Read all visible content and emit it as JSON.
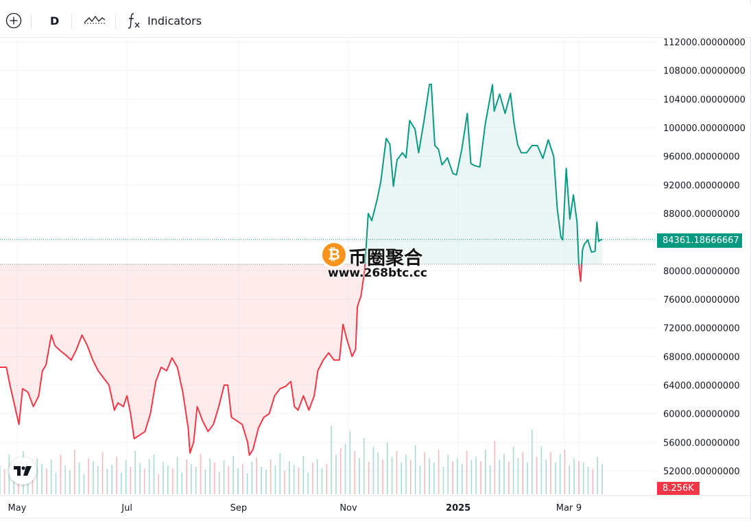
{
  "toolbar": {
    "interval": "D",
    "indicators_label": "Indicators",
    "icons": [
      "plus-circle-icon",
      "compare-symbol-icon",
      "function-icon"
    ]
  },
  "colors": {
    "up": "#089981",
    "down": "#f23645",
    "up_fill": "rgba(8,153,129,0.08)",
    "down_fill": "rgba(242,54,69,0.10)",
    "grid": "#f0f3fa",
    "text": "#131722"
  },
  "price_tag": "84361.18666667",
  "volume_tag": "8.256K",
  "watermark": {
    "title": "币圈聚合",
    "url": "www.268btc.cc",
    "icon": "bitcoin-icon"
  },
  "chart_data": {
    "type": "line",
    "baseline": 80900,
    "last_price": 84361.18666667,
    "ylim": [
      50000,
      113000
    ],
    "y_ticks": [
      "112000.00000000",
      "108000.00000000",
      "104000.00000000",
      "100000.00000000",
      "96000.00000000",
      "92000.00000000",
      "88000.00000000",
      "84000.00000000",
      "80000.00000000",
      "76000.00000000",
      "72000.00000000",
      "68000.00000000",
      "64000.00000000",
      "60000.00000000",
      "56000.00000000",
      "52000.00000000"
    ],
    "x_ticks": [
      {
        "label": "May",
        "date": "2024-05-01"
      },
      {
        "label": "Jul",
        "date": "2024-07-01"
      },
      {
        "label": "Sep",
        "date": "2024-09-01"
      },
      {
        "label": "Nov",
        "date": "2024-11-01"
      },
      {
        "label": "2025",
        "date": "2025-01-01",
        "bold": true
      },
      {
        "label": "Mar",
        "date": "2025-03-01"
      },
      {
        "label": "9",
        "date": "2025-03-09"
      }
    ],
    "date_range": [
      "2024-04-25",
      "2025-03-22"
    ],
    "series": [
      {
        "points": [
          [
            "2024-04-25",
            66500
          ],
          [
            "2024-04-27",
            64000
          ],
          [
            "2024-04-30",
            60700
          ],
          [
            "2024-05-02",
            58500
          ],
          [
            "2024-05-04",
            63500
          ],
          [
            "2024-05-07",
            63000
          ],
          [
            "2024-05-10",
            61000
          ],
          [
            "2024-05-13",
            62500
          ],
          [
            "2024-05-15",
            66000
          ],
          [
            "2024-05-17",
            66800
          ],
          [
            "2024-05-20",
            71000
          ],
          [
            "2024-05-22",
            69500
          ],
          [
            "2024-05-25",
            68800
          ],
          [
            "2024-05-28",
            68200
          ],
          [
            "2024-05-31",
            67500
          ],
          [
            "2024-06-03",
            69000
          ],
          [
            "2024-06-06",
            71000
          ],
          [
            "2024-06-09",
            69500
          ],
          [
            "2024-06-12",
            67500
          ],
          [
            "2024-06-15",
            66000
          ],
          [
            "2024-06-18",
            65000
          ],
          [
            "2024-06-21",
            64000
          ],
          [
            "2024-06-24",
            60500
          ],
          [
            "2024-06-26",
            61500
          ],
          [
            "2024-06-29",
            61000
          ],
          [
            "2024-07-01",
            62500
          ],
          [
            "2024-07-03",
            60000
          ],
          [
            "2024-07-05",
            56500
          ],
          [
            "2024-07-08",
            57000
          ],
          [
            "2024-07-11",
            57500
          ],
          [
            "2024-07-14",
            60000
          ],
          [
            "2024-07-17",
            64500
          ],
          [
            "2024-07-20",
            66500
          ],
          [
            "2024-07-23",
            66000
          ],
          [
            "2024-07-26",
            67800
          ],
          [
            "2024-07-29",
            66500
          ],
          [
            "2024-08-01",
            63000
          ],
          [
            "2024-08-04",
            58000
          ],
          [
            "2024-08-05",
            54500
          ],
          [
            "2024-08-07",
            56000
          ],
          [
            "2024-08-09",
            61000
          ],
          [
            "2024-08-12",
            59000
          ],
          [
            "2024-08-15",
            57500
          ],
          [
            "2024-08-18",
            58500
          ],
          [
            "2024-08-21",
            61000
          ],
          [
            "2024-08-24",
            64000
          ],
          [
            "2024-08-26",
            64000
          ],
          [
            "2024-08-28",
            59500
          ],
          [
            "2024-08-31",
            59000
          ],
          [
            "2024-09-03",
            58500
          ],
          [
            "2024-09-06",
            56000
          ],
          [
            "2024-09-07",
            54200
          ],
          [
            "2024-09-09",
            55000
          ],
          [
            "2024-09-12",
            58000
          ],
          [
            "2024-09-15",
            59500
          ],
          [
            "2024-09-18",
            60000
          ],
          [
            "2024-09-21",
            62500
          ],
          [
            "2024-09-24",
            63500
          ],
          [
            "2024-09-27",
            63800
          ],
          [
            "2024-09-30",
            64500
          ],
          [
            "2024-10-02",
            61000
          ],
          [
            "2024-10-04",
            60500
          ],
          [
            "2024-10-07",
            62500
          ],
          [
            "2024-10-10",
            60500
          ],
          [
            "2024-10-13",
            62500
          ],
          [
            "2024-10-15",
            66000
          ],
          [
            "2024-10-18",
            67500
          ],
          [
            "2024-10-21",
            68500
          ],
          [
            "2024-10-24",
            67500
          ],
          [
            "2024-10-27",
            67500
          ],
          [
            "2024-10-29",
            72500
          ],
          [
            "2024-10-31",
            70500
          ],
          [
            "2024-11-03",
            68000
          ],
          [
            "2024-11-05",
            69000
          ],
          [
            "2024-11-06",
            75000
          ],
          [
            "2024-11-08",
            76500
          ],
          [
            "2024-11-10",
            80000
          ],
          [
            "2024-11-12",
            88000
          ],
          [
            "2024-11-14",
            87000
          ],
          [
            "2024-11-17",
            90000
          ],
          [
            "2024-11-19",
            92500
          ],
          [
            "2024-11-22",
            98500
          ],
          [
            "2024-11-24",
            97700
          ],
          [
            "2024-11-26",
            91800
          ],
          [
            "2024-11-28",
            95500
          ],
          [
            "2024-12-01",
            96500
          ],
          [
            "2024-12-03",
            95800
          ],
          [
            "2024-12-05",
            101000
          ],
          [
            "2024-12-08",
            99800
          ],
          [
            "2024-12-10",
            96500
          ],
          [
            "2024-12-13",
            101000
          ],
          [
            "2024-12-16",
            106000
          ],
          [
            "2024-12-17",
            106100
          ],
          [
            "2024-12-19",
            97500
          ],
          [
            "2024-12-21",
            97000
          ],
          [
            "2024-12-23",
            94800
          ],
          [
            "2024-12-26",
            95800
          ],
          [
            "2024-12-29",
            93600
          ],
          [
            "2024-12-31",
            93400
          ],
          [
            "2025-01-03",
            97000
          ],
          [
            "2025-01-06",
            102000
          ],
          [
            "2025-01-08",
            95000
          ],
          [
            "2025-01-10",
            94700
          ],
          [
            "2025-01-13",
            94500
          ],
          [
            "2025-01-16",
            100500
          ],
          [
            "2025-01-20",
            106000
          ],
          [
            "2025-01-21",
            102300
          ],
          [
            "2025-01-24",
            104700
          ],
          [
            "2025-01-27",
            102000
          ],
          [
            "2025-01-30",
            104800
          ],
          [
            "2025-02-01",
            100600
          ],
          [
            "2025-02-03",
            97600
          ],
          [
            "2025-02-05",
            96500
          ],
          [
            "2025-02-08",
            96500
          ],
          [
            "2025-02-11",
            97500
          ],
          [
            "2025-02-14",
            97500
          ],
          [
            "2025-02-17",
            95700
          ],
          [
            "2025-02-20",
            98300
          ],
          [
            "2025-02-23",
            96000
          ],
          [
            "2025-02-25",
            88700
          ],
          [
            "2025-02-27",
            84700
          ],
          [
            "2025-02-28",
            84300
          ],
          [
            "2025-03-02",
            94300
          ],
          [
            "2025-03-04",
            87200
          ],
          [
            "2025-03-06",
            90600
          ],
          [
            "2025-03-08",
            86700
          ],
          [
            "2025-03-09",
            80700
          ],
          [
            "2025-03-10",
            78500
          ],
          [
            "2025-03-11",
            82900
          ],
          [
            "2025-03-12",
            83700
          ],
          [
            "2025-03-14",
            84300
          ],
          [
            "2025-03-16",
            82600
          ],
          [
            "2025-03-18",
            82700
          ],
          [
            "2025-03-19",
            86800
          ],
          [
            "2025-03-20",
            84100
          ],
          [
            "2025-03-21",
            84300
          ],
          [
            "2025-03-22",
            84361
          ]
        ]
      }
    ],
    "volume": {
      "values": [
        40,
        35,
        55,
        30,
        45,
        60,
        25,
        38,
        50,
        42,
        36,
        48,
        30,
        55,
        40,
        33,
        62,
        44,
        28,
        50,
        46,
        39,
        58,
        35,
        41,
        52,
        30,
        47,
        38,
        60,
        43,
        35,
        49,
        55,
        28,
        45,
        40,
        36,
        52,
        30,
        48,
        42,
        38,
        56,
        34,
        50,
        44,
        31,
        47,
        39,
        53,
        36,
        42,
        29,
        45,
        51,
        38,
        34,
        48,
        40,
        57,
        33,
        46,
        41,
        37,
        53,
        30,
        44,
        49,
        36,
        42,
        95,
        55,
        64,
        70,
        88,
        60,
        50,
        78,
        45,
        66,
        58,
        48,
        72,
        52,
        60,
        44,
        55,
        48,
        68,
        40,
        58,
        50,
        44,
        62,
        38,
        55,
        46,
        50,
        42,
        60,
        48,
        52,
        46,
        62,
        40,
        74,
        48,
        56,
        45,
        66,
        50,
        58,
        44,
        90,
        52,
        66,
        48,
        58,
        44,
        56,
        62,
        40,
        50,
        46,
        44,
        38,
        35,
        52,
        42
      ],
      "ylim": [
        0,
        100
      ]
    }
  }
}
